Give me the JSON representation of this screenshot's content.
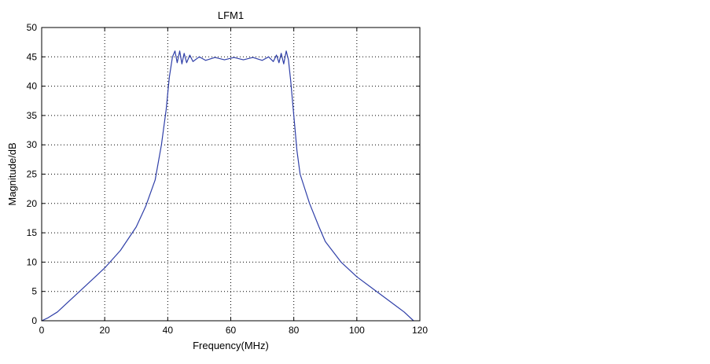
{
  "chart_data": {
    "type": "line",
    "title": "LFM1",
    "xlabel": "Frequency(MHz)",
    "ylabel": "Magnitude/dB",
    "xlim": [
      0,
      120
    ],
    "ylim": [
      0,
      50
    ],
    "xticks": [
      0,
      20,
      40,
      60,
      80,
      100,
      120
    ],
    "yticks": [
      0,
      5,
      10,
      15,
      20,
      25,
      30,
      35,
      40,
      45,
      50
    ],
    "grid": true,
    "series": [
      {
        "color": "#2f3fa8",
        "x": [
          0,
          2,
          5,
          10,
          15,
          20,
          25,
          30,
          33,
          36,
          38,
          39.5,
          40.5,
          41.5,
          42.3,
          43,
          43.8,
          44.5,
          45.2,
          46,
          47,
          48,
          50,
          52,
          55,
          58,
          61,
          64,
          67,
          70,
          72,
          73.5,
          74.5,
          75.3,
          76,
          76.8,
          77.6,
          78.3,
          79,
          80,
          81,
          82,
          85,
          88,
          90,
          95,
          100,
          105,
          110,
          115,
          118
        ],
        "y": [
          0,
          0.5,
          1.5,
          4.0,
          6.5,
          9.0,
          12.0,
          16.0,
          19.5,
          24.0,
          30.0,
          36.0,
          41.5,
          45.0,
          46.0,
          44.0,
          46.0,
          43.8,
          45.6,
          44.0,
          45.3,
          44.2,
          45.0,
          44.4,
          44.9,
          44.5,
          44.9,
          44.5,
          44.9,
          44.4,
          45.0,
          44.2,
          45.3,
          44.0,
          45.6,
          43.8,
          46.0,
          44.5,
          41.0,
          35.0,
          29.0,
          25.0,
          20.0,
          16.0,
          13.5,
          10.0,
          7.5,
          5.5,
          3.5,
          1.5,
          0
        ]
      }
    ]
  }
}
